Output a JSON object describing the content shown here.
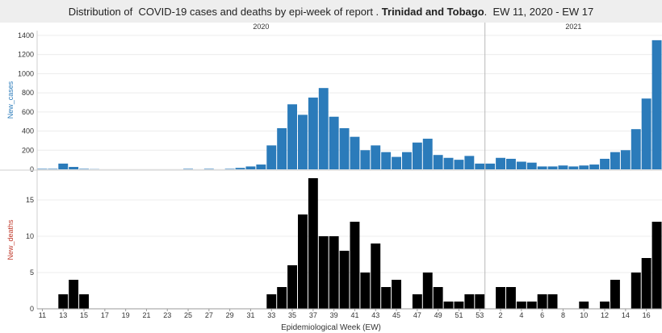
{
  "chart_data": {
    "type": "bar",
    "title": {
      "prefix": "Distribution of  COVID-19 cases and deaths by epi-week of report . ",
      "country": "Trinidad and Tobago",
      "suffix": ".  EW 11, 2020 - EW 17"
    },
    "years": [
      "2020",
      "2021"
    ],
    "xlabel": "Epidemiological Week (EW)",
    "x_tick_labels": [
      "11",
      "13",
      "15",
      "17",
      "19",
      "21",
      "23",
      "25",
      "27",
      "29",
      "31",
      "33",
      "35",
      "37",
      "39",
      "41",
      "43",
      "45",
      "47",
      "49",
      "51",
      "53",
      "2",
      "4",
      "6",
      "8",
      "10",
      "12",
      "14",
      "16"
    ],
    "weeks": [
      "2020-11",
      "2020-12",
      "2020-13",
      "2020-14",
      "2020-15",
      "2020-16",
      "2020-17",
      "2020-18",
      "2020-19",
      "2020-20",
      "2020-21",
      "2020-22",
      "2020-23",
      "2020-24",
      "2020-25",
      "2020-26",
      "2020-27",
      "2020-28",
      "2020-29",
      "2020-30",
      "2020-31",
      "2020-32",
      "2020-33",
      "2020-34",
      "2020-35",
      "2020-36",
      "2020-37",
      "2020-38",
      "2020-39",
      "2020-40",
      "2020-41",
      "2020-42",
      "2020-43",
      "2020-44",
      "2020-45",
      "2020-46",
      "2020-47",
      "2020-48",
      "2020-49",
      "2020-50",
      "2020-51",
      "2020-52",
      "2020-53",
      "2021-1",
      "2021-2",
      "2021-3",
      "2021-4",
      "2021-5",
      "2021-6",
      "2021-7",
      "2021-8",
      "2021-9",
      "2021-10",
      "2021-11",
      "2021-12",
      "2021-13",
      "2021-14",
      "2021-15",
      "2021-16",
      "2021-17"
    ],
    "series": [
      {
        "name": "New_cases",
        "color": "#2b7bba",
        "ylim": [
          0,
          1450
        ],
        "yticks": [
          0,
          200,
          400,
          600,
          800,
          1000,
          1200,
          1400
        ],
        "values": [
          5,
          5,
          60,
          25,
          5,
          2,
          0,
          0,
          0,
          0,
          0,
          0,
          0,
          0,
          5,
          0,
          5,
          0,
          5,
          15,
          30,
          50,
          250,
          430,
          680,
          570,
          750,
          850,
          550,
          430,
          340,
          200,
          250,
          180,
          130,
          180,
          280,
          320,
          150,
          120,
          100,
          140,
          60,
          60,
          120,
          110,
          80,
          70,
          30,
          30,
          40,
          30,
          40,
          50,
          110,
          180,
          200,
          420,
          740,
          1350
        ]
      },
      {
        "name": "New_deaths",
        "color": "#000000",
        "ylim": [
          0,
          19
        ],
        "yticks": [
          0,
          5,
          10,
          15
        ],
        "values": [
          0,
          0,
          2,
          4,
          2,
          0,
          0,
          0,
          0,
          0,
          0,
          0,
          0,
          0,
          0,
          0,
          0,
          0,
          0,
          0,
          0,
          0,
          2,
          3,
          6,
          13,
          18,
          10,
          10,
          8,
          12,
          5,
          9,
          3,
          4,
          0,
          2,
          5,
          3,
          1,
          1,
          2,
          2,
          0,
          3,
          3,
          1,
          1,
          2,
          2,
          0,
          0,
          1,
          0,
          1,
          4,
          0,
          5,
          7,
          12
        ]
      }
    ]
  }
}
